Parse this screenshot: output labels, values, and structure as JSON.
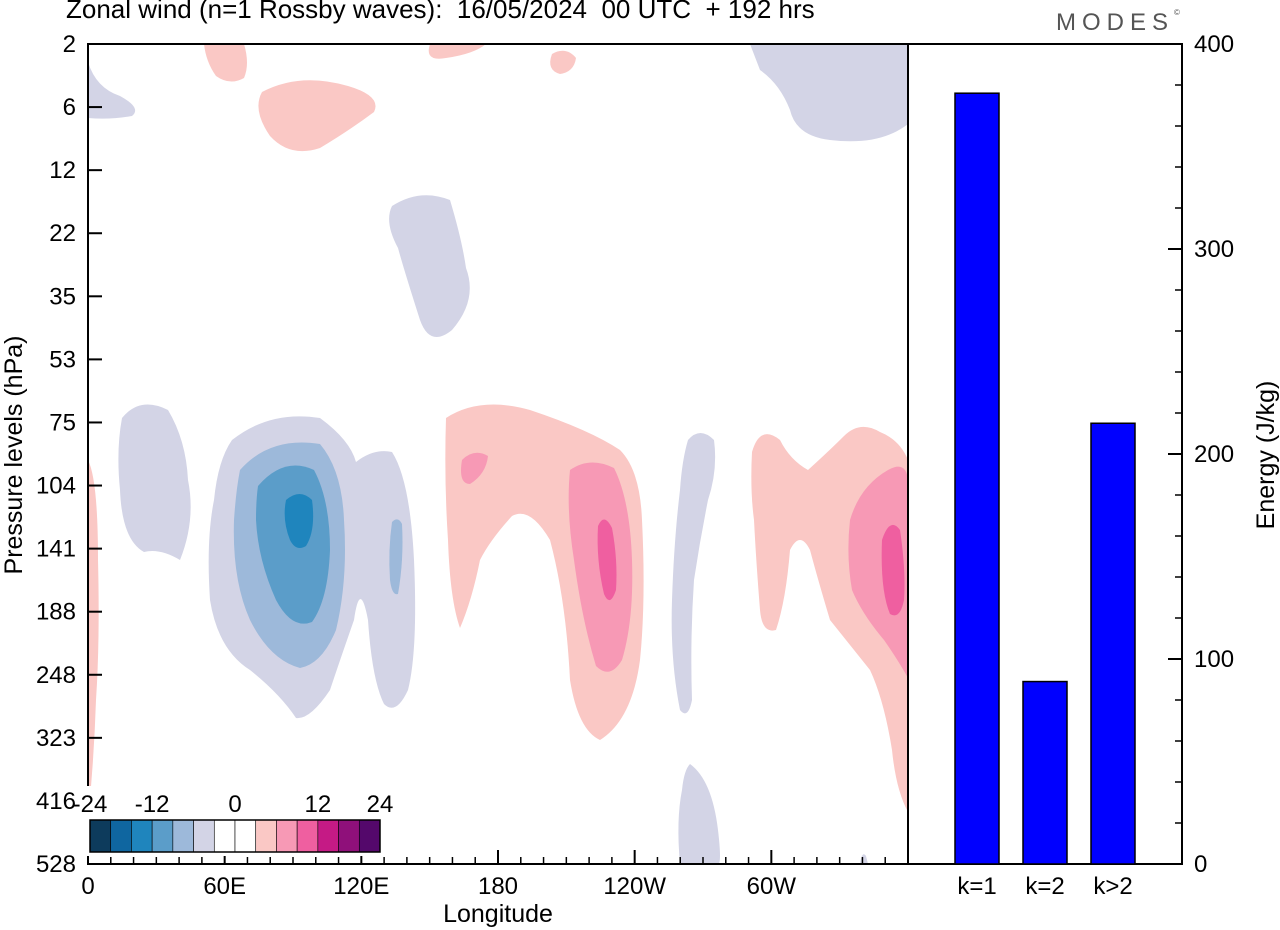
{
  "title": "Zonal wind (n=1 Rossby waves):  16/05/2024  00 UTC  + 192 hrs",
  "brand": "MODES",
  "brand_mark": "©",
  "colors": {
    "neg": [
      "#0d3b5c",
      "#0f66a0",
      "#1f85bd",
      "#5b9dc9",
      "#9db9da",
      "#d3d4e6"
    ],
    "neg_fill": [
      "#d3d4e6",
      "#9db9da",
      "#5b9dc9",
      "#1f85bd"
    ],
    "pos_fill": [
      "#fac8c5",
      "#f799b5",
      "#ef5fa0"
    ],
    "pos": [
      "#fac8c5",
      "#f799b5",
      "#ef5fa0",
      "#c51a85",
      "#8f107a",
      "#54086b"
    ],
    "bar": "#0000ff"
  },
  "chart_data": [
    {
      "type": "heatmap",
      "title": "Zonal wind (n=1 Rossby waves):  16/05/2024  00 UTC  + 192 hrs",
      "xlabel": "Longitude",
      "ylabel": "Pressure levels (hPa)",
      "x_ticks": [
        "0",
        "60E",
        "120E",
        "180",
        "120W",
        "60W"
      ],
      "x_tick_degrees": [
        0,
        60,
        120,
        180,
        240,
        300
      ],
      "xlim": [
        0,
        360
      ],
      "y_ticks": [
        "2",
        "6",
        "12",
        "22",
        "35",
        "53",
        "75",
        "104",
        "141",
        "188",
        "248",
        "323",
        "416",
        "528"
      ],
      "colorbar_labels": [
        "-24",
        "-12",
        "0",
        "12",
        "24"
      ],
      "colorbar_levels": [
        -30,
        -25,
        -20,
        -15,
        -10,
        -5,
        5,
        10,
        15,
        20,
        25,
        30
      ],
      "features": [
        {
          "sign": "negative",
          "lon": 95,
          "level": "141",
          "peak": -20
        },
        {
          "sign": "negative",
          "lon": 130,
          "level": "141",
          "peak": -10
        },
        {
          "sign": "negative",
          "lon": 25,
          "level": "104",
          "peak": -5
        },
        {
          "sign": "negative",
          "lon": 152,
          "level": "22",
          "peak": -5
        },
        {
          "sign": "negative",
          "lon": 345,
          "level": "2",
          "peak": -5
        },
        {
          "sign": "negative",
          "lon": 260,
          "level": "188",
          "peak": -5
        },
        {
          "sign": "positive",
          "lon": 225,
          "level": "141",
          "peak": 15
        },
        {
          "sign": "positive",
          "lon": 350,
          "level": "141",
          "peak": 15
        },
        {
          "sign": "positive",
          "lon": 169,
          "level": "104",
          "peak": 10
        },
        {
          "sign": "positive",
          "lon": 100,
          "level": "6",
          "peak": 5
        },
        {
          "sign": "positive",
          "lon": 3,
          "level": "188",
          "peak": 5
        }
      ]
    },
    {
      "type": "bar",
      "categories": [
        "k=1",
        "k=2",
        "k>2"
      ],
      "values": [
        376,
        89,
        215
      ],
      "ylabel": "Energy (J/kg)",
      "ylim": [
        0,
        400
      ],
      "y_ticks": [
        0,
        100,
        200,
        300,
        400
      ]
    }
  ]
}
